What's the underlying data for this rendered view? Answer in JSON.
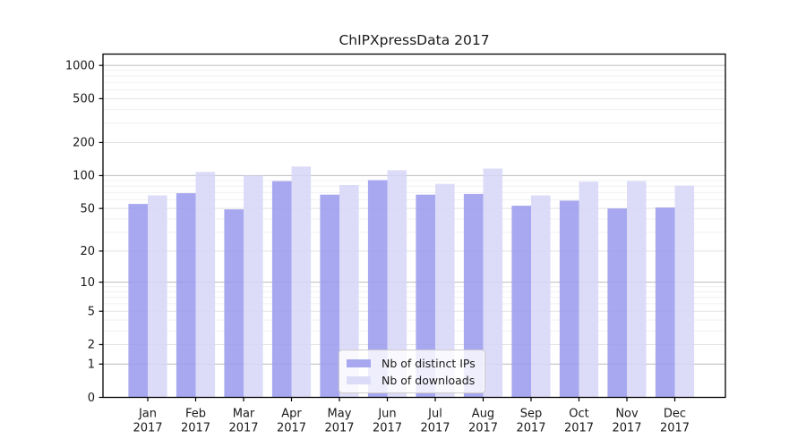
{
  "title": "ChIPXpressData 2017",
  "legend": {
    "items": [
      {
        "label": "Nb of distinct IPs",
        "color": "#a8a8f0"
      },
      {
        "label": "Nb of downloads",
        "color": "#dcdcf9"
      }
    ]
  },
  "chart_data": {
    "type": "bar",
    "title": "ChIPXpressData 2017",
    "categories": [
      "Jan 2017",
      "Feb 2017",
      "Mar 2017",
      "Apr 2017",
      "May 2017",
      "Jun 2017",
      "Jul 2017",
      "Aug 2017",
      "Sep 2017",
      "Oct 2017",
      "Nov 2017",
      "Dec 2017"
    ],
    "series": [
      {
        "name": "Nb of distinct IPs",
        "color": "#a8a8f0",
        "values": [
          55,
          69,
          49,
          89,
          67,
          91,
          67,
          68,
          53,
          59,
          50,
          51
        ]
      },
      {
        "name": "Nb of downloads",
        "color": "#dcdcf9",
        "values": [
          66,
          108,
          100,
          121,
          82,
          112,
          84,
          116,
          66,
          88,
          89,
          81
        ]
      }
    ],
    "xlabel": "",
    "ylabel": "",
    "yscale": "log1p",
    "yticks": [
      0,
      1,
      2,
      5,
      10,
      20,
      50,
      100,
      200,
      500,
      1000
    ],
    "ylim": [
      0,
      1300
    ],
    "grid": true,
    "grid_minor": true,
    "legend_position": "lower center",
    "bar_alpha": 0.87,
    "colors": {
      "decade_grid": "#bcbcbc",
      "labeled_minor_grid": "#e2e2e2",
      "unlabeled_minor_grid": "#f1f1f1",
      "axis": "#000000",
      "text": "#1a1a1a"
    }
  }
}
